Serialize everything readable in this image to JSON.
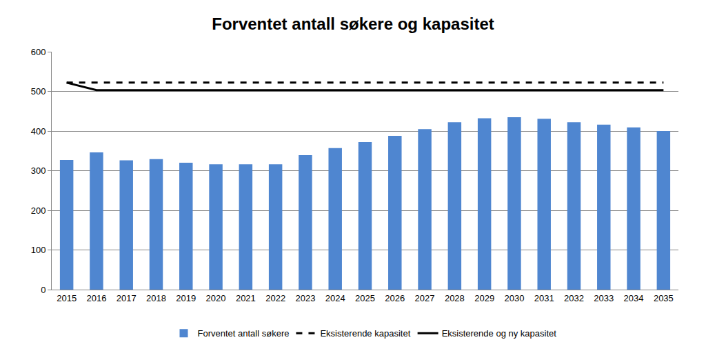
{
  "chart_data": {
    "type": "bar",
    "title": "Forventet antall søkere og kapasitet",
    "categories": [
      "2015",
      "2016",
      "2017",
      "2018",
      "2019",
      "2020",
      "2021",
      "2022",
      "2023",
      "2024",
      "2025",
      "2026",
      "2027",
      "2028",
      "2029",
      "2030",
      "2031",
      "2032",
      "2033",
      "2034",
      "2035"
    ],
    "series": [
      {
        "name": "Forventet antall søkere",
        "type": "bar",
        "color": "#4f86d0",
        "values": [
          327,
          346,
          326,
          329,
          320,
          316,
          316,
          316,
          339,
          357,
          372,
          388,
          405,
          422,
          432,
          435,
          431,
          422,
          416,
          409,
          400
        ]
      },
      {
        "name": "Eksisterende kapasitet",
        "type": "line",
        "line_style": "dashed",
        "color": "#000000",
        "values": [
          522,
          522,
          522,
          522,
          522,
          522,
          522,
          522,
          522,
          522,
          522,
          522,
          522,
          522,
          522,
          522,
          522,
          522,
          522,
          522,
          522
        ]
      },
      {
        "name": "Eksisterende og ny kapasitet",
        "type": "line",
        "line_style": "solid",
        "color": "#000000",
        "values": [
          522,
          503,
          503,
          503,
          503,
          503,
          503,
          503,
          503,
          503,
          503,
          503,
          503,
          503,
          503,
          503,
          503,
          503,
          503,
          503,
          503
        ]
      }
    ],
    "ylim": [
      0,
      600
    ],
    "yticks": [
      0,
      100,
      200,
      300,
      400,
      500,
      600
    ],
    "grid": true,
    "legend": "bottom"
  }
}
